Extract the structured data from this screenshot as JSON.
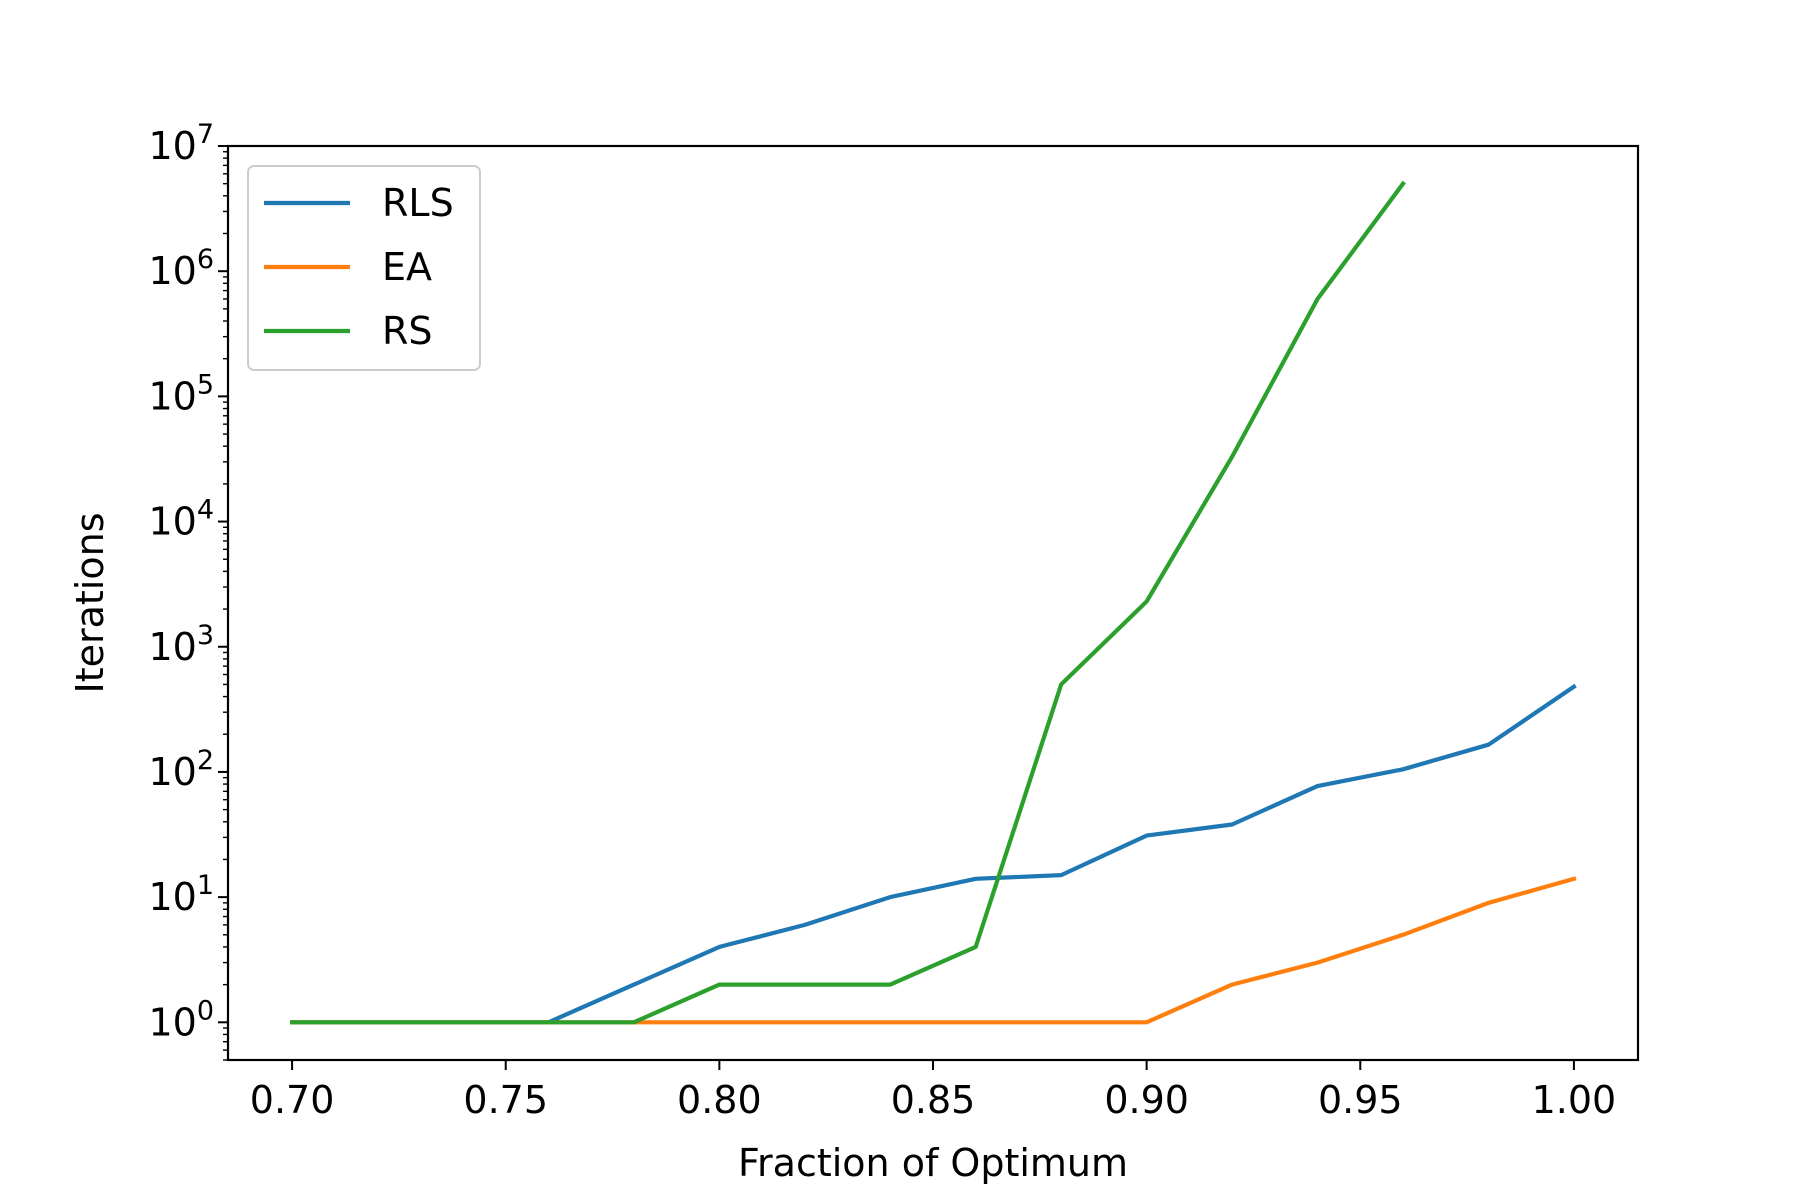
{
  "chart_data": {
    "type": "line",
    "xlabel": "Fraction of Optimum",
    "ylabel": "Iterations",
    "xlim": [
      0.685,
      1.015
    ],
    "ylim": [
      0.5,
      10000000
    ],
    "yscale": "log",
    "grid": false,
    "legend_position": "top-left",
    "x_ticks": [
      {
        "value": 0.7,
        "label": "0.70"
      },
      {
        "value": 0.75,
        "label": "0.75"
      },
      {
        "value": 0.8,
        "label": "0.80"
      },
      {
        "value": 0.85,
        "label": "0.85"
      },
      {
        "value": 0.9,
        "label": "0.90"
      },
      {
        "value": 0.95,
        "label": "0.95"
      },
      {
        "value": 1.0,
        "label": "1.00"
      }
    ],
    "y_ticks": [
      {
        "exp": 0,
        "base": "10",
        "sup": "0"
      },
      {
        "exp": 1,
        "base": "10",
        "sup": "1"
      },
      {
        "exp": 2,
        "base": "10",
        "sup": "2"
      },
      {
        "exp": 3,
        "base": "10",
        "sup": "3"
      },
      {
        "exp": 4,
        "base": "10",
        "sup": "4"
      },
      {
        "exp": 5,
        "base": "10",
        "sup": "5"
      },
      {
        "exp": 6,
        "base": "10",
        "sup": "6"
      },
      {
        "exp": 7,
        "base": "10",
        "sup": "7"
      }
    ],
    "series": [
      {
        "name": "RLS",
        "color": "#1f77b4",
        "x": [
          0.7,
          0.72,
          0.74,
          0.76,
          0.78,
          0.8,
          0.82,
          0.84,
          0.86,
          0.88,
          0.9,
          0.92,
          0.94,
          0.96,
          0.98,
          1.0
        ],
        "y": [
          1,
          1,
          1,
          1,
          2,
          4,
          6,
          10,
          14,
          15,
          31,
          38,
          77,
          105,
          165,
          480
        ]
      },
      {
        "name": "EA",
        "color": "#ff7f0e",
        "x": [
          0.7,
          0.72,
          0.74,
          0.76,
          0.78,
          0.8,
          0.82,
          0.84,
          0.86,
          0.88,
          0.9,
          0.92,
          0.94,
          0.96,
          0.98,
          1.0
        ],
        "y": [
          1,
          1,
          1,
          1,
          1,
          1,
          1,
          1,
          1,
          1,
          1,
          2,
          3,
          5,
          9,
          14
        ]
      },
      {
        "name": "RS",
        "color": "#2ca02c",
        "x": [
          0.7,
          0.72,
          0.74,
          0.76,
          0.78,
          0.8,
          0.82,
          0.84,
          0.86,
          0.88,
          0.9,
          0.92,
          0.94,
          0.96
        ],
        "y": [
          1,
          1,
          1,
          1,
          1,
          2,
          2,
          2,
          4,
          500,
          2300,
          33000,
          600000,
          5000000
        ]
      }
    ]
  }
}
